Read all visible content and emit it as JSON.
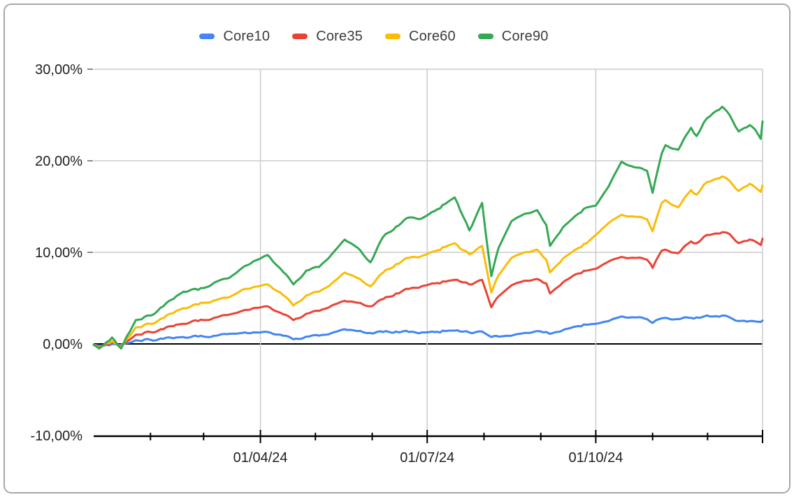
{
  "style": {
    "background": "#ffffff",
    "border_color": "#a8a8a8",
    "gridline_color": "#cccccc",
    "axis_color": "#000000",
    "label_color": "#1f1f1f",
    "legend_text_color": "#3c3c3c"
  },
  "chart_data": {
    "type": "line",
    "title": "",
    "unit": "%",
    "decimal_separator": ",",
    "grid": true,
    "legend_position": "top",
    "x_axis": {
      "range_start": "01/01/24",
      "range_end": "31/12/24",
      "major_tick_labels": [
        "01/04/24",
        "01/07/24",
        "01/10/24"
      ],
      "major_tick_months": [
        4,
        7,
        10
      ],
      "minor_tick_months": [
        2,
        3,
        5,
        6,
        8,
        9,
        11,
        12
      ]
    },
    "y_axis": {
      "min": -10,
      "max": 30,
      "ticks": [
        {
          "label": "30,00%",
          "value": 30
        },
        {
          "label": "20,00%",
          "value": 20
        },
        {
          "label": "10,00%",
          "value": 10
        },
        {
          "label": "0,00%",
          "value": 0
        },
        {
          "label": "-10,00%",
          "value": -10
        }
      ]
    },
    "dates": [
      "01/01/24",
      "04/01/24",
      "08/01/24",
      "11/01/24",
      "16/01/24",
      "19/01/24",
      "24/01/24",
      "01/02/24",
      "08/02/24",
      "15/02/24",
      "19/02/24",
      "23/02/24",
      "27/02/24",
      "01/03/24",
      "08/03/24",
      "15/03/24",
      "22/03/24",
      "28/03/24",
      "05/04/24",
      "12/04/24",
      "19/04/24",
      "26/04/24",
      "03/05/24",
      "10/05/24",
      "17/05/24",
      "24/05/24",
      "31/05/24",
      "07/06/24",
      "14/06/24",
      "21/06/24",
      "28/06/24",
      "05/07/24",
      "11/07/24",
      "16/07/24",
      "19/07/24",
      "24/07/24",
      "31/07/24",
      "02/08/24",
      "05/08/24",
      "09/08/24",
      "16/08/24",
      "23/08/24",
      "30/08/24",
      "04/09/24",
      "06/09/24",
      "13/09/24",
      "20/09/24",
      "26/09/24",
      "01/10/24",
      "08/10/24",
      "15/10/24",
      "22/10/24",
      "29/10/24",
      "31/10/24",
      "01/11/24",
      "06/11/24",
      "08/11/24",
      "15/11/24",
      "22/11/24",
      "25/11/24",
      "29/11/24",
      "04/12/24",
      "09/12/24",
      "13/12/24",
      "18/12/24",
      "24/12/24",
      "27/12/24",
      "30/12/24",
      "31/12/24"
    ],
    "series": [
      {
        "name": "Core10",
        "color": "#4285F4",
        "values": [
          -0.1,
          -0.2,
          -0.1,
          0.0,
          -0.1,
          0.1,
          0.4,
          0.45,
          0.55,
          0.7,
          0.75,
          0.75,
          0.8,
          0.8,
          0.9,
          1.1,
          1.2,
          1.25,
          1.3,
          1.0,
          0.5,
          0.8,
          0.9,
          1.2,
          1.6,
          1.4,
          1.2,
          1.3,
          1.35,
          1.3,
          1.25,
          1.3,
          1.4,
          1.45,
          1.35,
          1.25,
          1.35,
          1.1,
          0.75,
          0.8,
          0.9,
          1.2,
          1.4,
          1.3,
          1.1,
          1.5,
          1.9,
          2.1,
          2.2,
          2.5,
          3.0,
          2.9,
          2.7,
          2.4,
          2.3,
          2.8,
          2.85,
          2.7,
          2.85,
          2.9,
          3.0,
          3.0,
          3.1,
          2.9,
          2.5,
          2.5,
          2.45,
          2.4,
          2.55
        ]
      },
      {
        "name": "Core35",
        "color": "#EA4335",
        "values": [
          -0.1,
          -0.3,
          0.0,
          0.2,
          -0.2,
          0.3,
          1.0,
          1.3,
          1.6,
          2.1,
          2.2,
          2.4,
          2.5,
          2.6,
          2.9,
          3.2,
          3.6,
          3.9,
          4.1,
          3.4,
          2.6,
          3.3,
          3.6,
          4.2,
          4.7,
          4.5,
          4.1,
          4.9,
          5.5,
          6.0,
          6.3,
          6.6,
          6.8,
          7.0,
          6.8,
          6.5,
          7.0,
          5.8,
          4.0,
          5.2,
          6.4,
          6.9,
          7.1,
          6.6,
          5.5,
          6.7,
          7.6,
          8.0,
          8.2,
          9.0,
          9.5,
          9.4,
          9.2,
          8.7,
          8.3,
          10.2,
          10.3,
          9.9,
          11.2,
          11.0,
          11.7,
          12.0,
          12.2,
          12.0,
          11.0,
          11.4,
          11.2,
          10.8,
          11.5
        ]
      },
      {
        "name": "Core60",
        "color": "#FBBC04",
        "values": [
          -0.1,
          -0.4,
          0.1,
          0.3,
          -0.3,
          0.5,
          1.8,
          2.2,
          2.8,
          3.6,
          3.9,
          4.1,
          4.3,
          4.5,
          4.8,
          5.1,
          5.9,
          6.2,
          6.5,
          5.6,
          4.2,
          5.3,
          5.7,
          6.6,
          7.8,
          7.2,
          6.3,
          7.8,
          8.7,
          9.4,
          9.6,
          10.1,
          10.6,
          11.0,
          10.4,
          9.8,
          10.7,
          8.6,
          5.6,
          7.5,
          9.4,
          10.0,
          10.3,
          9.2,
          7.8,
          9.3,
          10.3,
          11.0,
          11.9,
          13.2,
          14.1,
          13.9,
          13.6,
          12.7,
          12.3,
          15.4,
          15.7,
          14.9,
          16.8,
          16.3,
          17.4,
          17.9,
          18.3,
          17.8,
          16.7,
          17.5,
          17.1,
          16.6,
          17.3
        ]
      },
      {
        "name": "Core90",
        "color": "#34A853",
        "values": [
          -0.1,
          -0.5,
          0.2,
          0.7,
          -0.5,
          0.8,
          2.6,
          3.1,
          4.1,
          5.2,
          5.7,
          5.9,
          5.9,
          6.1,
          6.8,
          7.2,
          8.3,
          9.0,
          9.7,
          8.2,
          6.5,
          8.0,
          8.4,
          9.8,
          11.4,
          10.5,
          8.9,
          11.7,
          12.8,
          13.8,
          13.7,
          14.5,
          15.3,
          16.0,
          14.6,
          12.4,
          15.4,
          12.0,
          7.4,
          10.5,
          13.4,
          14.2,
          14.6,
          13.0,
          10.7,
          12.7,
          14.0,
          14.9,
          15.1,
          17.2,
          19.9,
          19.3,
          18.9,
          17.3,
          16.5,
          20.8,
          21.7,
          21.2,
          23.6,
          22.7,
          24.2,
          25.2,
          25.9,
          25.0,
          23.2,
          23.9,
          23.4,
          22.4,
          24.3
        ]
      }
    ]
  }
}
